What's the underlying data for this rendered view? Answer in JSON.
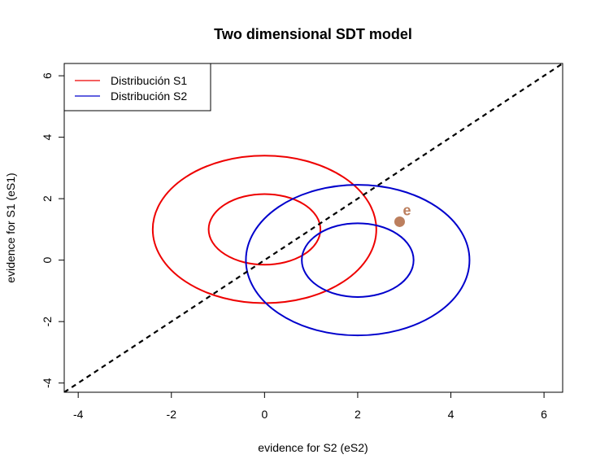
{
  "chart_data": {
    "type": "line",
    "title": "Two dimensional SDT model",
    "xlabel": "evidence for S2 (eS2)",
    "ylabel": "evidence for S1 (eS1)",
    "xlim": [
      -4.3,
      6.4
    ],
    "ylim": [
      -4.3,
      6.4
    ],
    "xticks": [
      -4,
      -2,
      0,
      2,
      4,
      6
    ],
    "yticks": [
      -4,
      -2,
      0,
      2,
      4,
      6
    ],
    "xtick_labels": [
      "-4",
      "-2",
      "0",
      "2",
      "4",
      "6"
    ],
    "ytick_labels": [
      "-4",
      "-2",
      "0",
      "2",
      "4",
      "6"
    ],
    "grid": false,
    "legend_position": "top-left",
    "series": [
      {
        "name": "Distribución S1",
        "color": "#ee0000",
        "center": [
          0,
          1
        ],
        "contours": [
          {
            "rx": 1.2,
            "ry": 1.15
          },
          {
            "rx": 2.4,
            "ry": 2.4
          }
        ]
      },
      {
        "name": "Distribución S2",
        "color": "#0000cc",
        "center": [
          2,
          0
        ],
        "contours": [
          {
            "rx": 1.2,
            "ry": 1.2
          },
          {
            "rx": 2.4,
            "ry": 2.45
          }
        ]
      }
    ],
    "diagonal": {
      "slope": 1,
      "intercept": 0,
      "style": "dashed",
      "color": "#000000"
    },
    "points": [
      {
        "label": "e",
        "x": 2.9,
        "y": 1.25,
        "color": "#bc7f5e"
      }
    ]
  }
}
